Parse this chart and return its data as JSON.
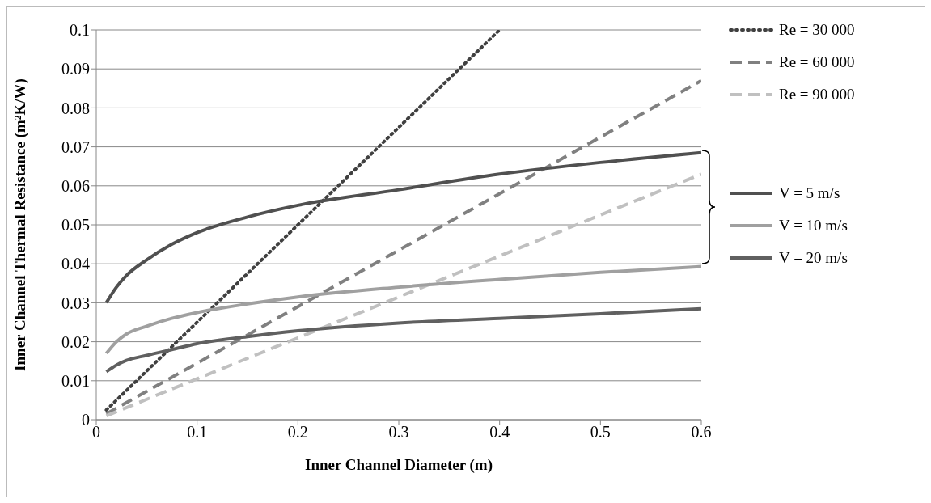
{
  "chart_data": {
    "type": "line",
    "xlabel": "Inner Channel Diameter (m)",
    "ylabel": "Inner Channel Thermal Resistance (m²K/W)",
    "xlim": [
      0,
      0.6
    ],
    "xticks": [
      0,
      0.1,
      0.2,
      0.3,
      0.4,
      0.5,
      0.6
    ],
    "ylim": [
      0,
      0.1
    ],
    "yticks": [
      0,
      0.01,
      0.02,
      0.03,
      0.04,
      0.05,
      0.06,
      0.07,
      0.08,
      0.09,
      0.1
    ],
    "grid": "y",
    "legend": "right",
    "marker": "none",
    "series": [
      {
        "name": "Re = 30 000",
        "color": "#404040",
        "line_style": "dotted",
        "x": [
          0.01,
          0.1,
          0.2,
          0.3,
          0.4
        ],
        "values": [
          0.0025,
          0.025,
          0.05,
          0.075,
          0.1
        ]
      },
      {
        "name": "Re = 60 000",
        "color": "#808080",
        "line_style": "dashed",
        "x": [
          0.01,
          0.1,
          0.2,
          0.3,
          0.4,
          0.5,
          0.6
        ],
        "values": [
          0.0015,
          0.0145,
          0.029,
          0.0435,
          0.058,
          0.0725,
          0.087
        ]
      },
      {
        "name": "Re = 90 000",
        "color": "#c0c0c0",
        "line_style": "dashed",
        "x": [
          0.01,
          0.1,
          0.2,
          0.3,
          0.4,
          0.5,
          0.6
        ],
        "values": [
          0.001,
          0.0105,
          0.021,
          0.0315,
          0.042,
          0.0525,
          0.063
        ]
      },
      {
        "name": "V = 5 m/s",
        "color": "#505050",
        "line_style": "solid",
        "x": [
          0.01,
          0.02,
          0.03,
          0.05,
          0.075,
          0.1,
          0.15,
          0.2,
          0.3,
          0.4,
          0.5,
          0.6
        ],
        "values": [
          0.03,
          0.034,
          0.037,
          0.041,
          0.045,
          0.048,
          0.052,
          0.055,
          0.059,
          0.063,
          0.066,
          0.0685
        ]
      },
      {
        "name": "V = 10 m/s",
        "color": "#a0a0a0",
        "line_style": "solid",
        "x": [
          0.01,
          0.02,
          0.03,
          0.05,
          0.075,
          0.1,
          0.15,
          0.2,
          0.3,
          0.4,
          0.5,
          0.6
        ],
        "values": [
          0.017,
          0.02,
          0.022,
          0.024,
          0.026,
          0.0275,
          0.0297,
          0.0315,
          0.034,
          0.036,
          0.0378,
          0.0393
        ]
      },
      {
        "name": "V = 20 m/s",
        "color": "#606060",
        "line_style": "solid",
        "x": [
          0.01,
          0.02,
          0.03,
          0.05,
          0.075,
          0.1,
          0.15,
          0.2,
          0.3,
          0.4,
          0.5,
          0.6
        ],
        "values": [
          0.0123,
          0.014,
          0.0152,
          0.0165,
          0.018,
          0.0195,
          0.0213,
          0.0228,
          0.0248,
          0.026,
          0.0272,
          0.0285
        ]
      }
    ]
  }
}
